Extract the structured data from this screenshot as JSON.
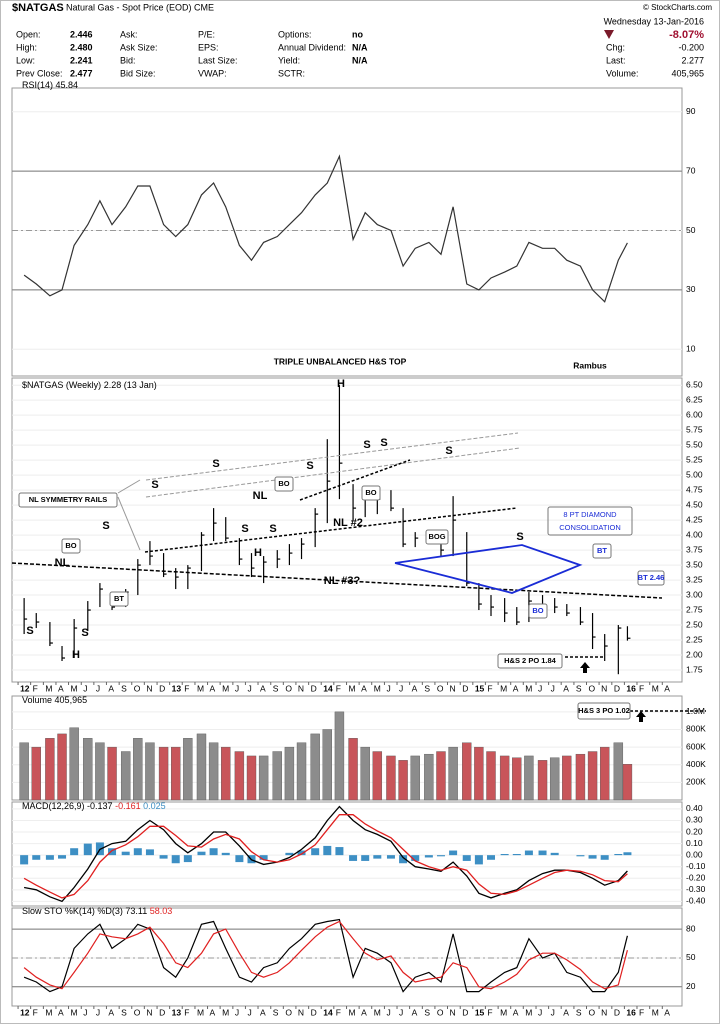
{
  "header": {
    "symbol": "$NATGAS",
    "name": "Natural Gas - Spot Price (EOD) CME",
    "credit": "© StockCharts.com",
    "date": "Wednesday 13-Jan-2016",
    "change_pct": "-8.07%",
    "columns": [
      [
        [
          "Open:",
          "2.446"
        ],
        [
          "High:",
          "2.480"
        ],
        [
          "Low:",
          "2.241"
        ],
        [
          "Prev Close:",
          "2.477"
        ]
      ],
      [
        [
          "Ask:"
        ],
        [
          "Ask Size:"
        ],
        [
          "Bid:"
        ],
        [
          "Bid Size:"
        ]
      ],
      [
        [
          "P/E:"
        ],
        [
          "EPS:"
        ],
        [
          "Last Size:"
        ],
        [
          "VWAP:"
        ]
      ],
      [
        [
          "Options:",
          "no"
        ],
        [
          "Annual Dividend:",
          "N/A"
        ],
        [
          "Yield:",
          "N/A"
        ],
        [
          "SCTR:"
        ]
      ]
    ],
    "quote": [
      [
        "Chg:",
        "-0.200"
      ],
      [
        "Last:",
        "2.277"
      ],
      [
        "Volume:",
        "405,965"
      ]
    ]
  },
  "chart_data": [
    {
      "type": "line",
      "title": "RSI(14)",
      "last": 45.84,
      "ylim": [
        1,
        98
      ],
      "yticks": [
        10,
        30,
        50,
        70,
        90
      ],
      "levels": [
        30,
        70
      ],
      "midline": 50,
      "annotations": [
        "TRIPLE UNBALANCED  H&S TOP",
        "Rambus"
      ],
      "series": [
        {
          "name": "RSI(14)",
          "color": "#333333",
          "values": [
            35,
            32,
            28,
            30,
            45,
            52,
            60,
            52,
            58,
            65,
            65,
            52,
            48,
            52,
            62,
            66,
            58,
            45,
            40,
            46,
            48,
            52,
            56,
            62,
            66,
            75,
            47,
            56,
            52,
            50,
            38,
            44,
            46,
            42,
            58,
            32,
            30,
            34,
            36,
            38,
            46,
            44,
            44,
            40,
            38,
            30,
            26,
            40,
            45.84
          ]
        }
      ]
    },
    {
      "type": "ohlc",
      "title": "$NATGAS (Weekly)",
      "last": 2.28,
      "date": "(13 Jan)",
      "color": "#000000",
      "xlim": [
        2011.96,
        2016.38
      ],
      "x": [
        2012.04,
        2012.12,
        2012.21,
        2012.29,
        2012.37,
        2012.46,
        2012.54,
        2012.62,
        2012.71,
        2012.79,
        2012.87,
        2012.96,
        2013.04,
        2013.12,
        2013.21,
        2013.29,
        2013.37,
        2013.46,
        2013.54,
        2013.62,
        2013.71,
        2013.79,
        2013.87,
        2013.96,
        2014.04,
        2014.12,
        2014.21,
        2014.29,
        2014.37,
        2014.46,
        2014.54,
        2014.62,
        2014.71,
        2014.79,
        2014.87,
        2014.96,
        2015.04,
        2015.12,
        2015.21,
        2015.29,
        2015.37,
        2015.46,
        2015.54,
        2015.62,
        2015.71,
        2015.79,
        2015.87,
        2015.96,
        2016.02
      ],
      "xticks": [
        {
          "value": 2012,
          "label": "12"
        },
        {
          "value": 2012.083,
          "label": "F"
        },
        {
          "value": 2012.167,
          "label": "M"
        },
        {
          "value": 2012.25,
          "label": "A"
        },
        {
          "value": 2012.333,
          "label": "M"
        },
        {
          "value": 2012.417,
          "label": "J"
        },
        {
          "value": 2012.5,
          "label": "J"
        },
        {
          "value": 2012.583,
          "label": "A"
        },
        {
          "value": 2012.667,
          "label": "S"
        },
        {
          "value": 2012.75,
          "label": "O"
        },
        {
          "value": 2012.833,
          "label": "N"
        },
        {
          "value": 2012.917,
          "label": "D"
        },
        {
          "value": 2013,
          "label": "13"
        },
        {
          "value": 2013.083,
          "label": "F"
        },
        {
          "value": 2013.167,
          "label": "M"
        },
        {
          "value": 2013.25,
          "label": "A"
        },
        {
          "value": 2013.333,
          "label": "M"
        },
        {
          "value": 2013.417,
          "label": "J"
        },
        {
          "value": 2013.5,
          "label": "J"
        },
        {
          "value": 2013.583,
          "label": "A"
        },
        {
          "value": 2013.667,
          "label": "S"
        },
        {
          "value": 2013.75,
          "label": "O"
        },
        {
          "value": 2013.833,
          "label": "N"
        },
        {
          "value": 2013.917,
          "label": "D"
        },
        {
          "value": 2014,
          "label": "14"
        },
        {
          "value": 2014.083,
          "label": "F"
        },
        {
          "value": 2014.167,
          "label": "M"
        },
        {
          "value": 2014.25,
          "label": "A"
        },
        {
          "value": 2014.333,
          "label": "M"
        },
        {
          "value": 2014.417,
          "label": "J"
        },
        {
          "value": 2014.5,
          "label": "J"
        },
        {
          "value": 2014.583,
          "label": "A"
        },
        {
          "value": 2014.667,
          "label": "S"
        },
        {
          "value": 2014.75,
          "label": "O"
        },
        {
          "value": 2014.833,
          "label": "N"
        },
        {
          "value": 2014.917,
          "label": "D"
        },
        {
          "value": 2015,
          "label": "15"
        },
        {
          "value": 2015.083,
          "label": "F"
        },
        {
          "value": 2015.167,
          "label": "M"
        },
        {
          "value": 2015.25,
          "label": "A"
        },
        {
          "value": 2015.333,
          "label": "M"
        },
        {
          "value": 2015.417,
          "label": "J"
        },
        {
          "value": 2015.5,
          "label": "J"
        },
        {
          "value": 2015.583,
          "label": "A"
        },
        {
          "value": 2015.667,
          "label": "S"
        },
        {
          "value": 2015.75,
          "label": "O"
        },
        {
          "value": 2015.833,
          "label": "N"
        },
        {
          "value": 2015.917,
          "label": "D"
        },
        {
          "value": 2016,
          "label": "16"
        },
        {
          "value": 2016.083,
          "label": "F"
        },
        {
          "value": 2016.167,
          "label": "M"
        },
        {
          "value": 2016.25,
          "label": "A"
        }
      ],
      "ylim": [
        1.55,
        6.62
      ],
      "yticks": [
        1.75,
        {
          "value": 2,
          "label": "2.00"
        },
        2.25,
        {
          "value": 2.5,
          "label": "2.50"
        },
        2.75,
        {
          "value": 3,
          "label": "3.00"
        },
        3.25,
        {
          "value": 3.5,
          "label": "3.50"
        },
        3.75,
        {
          "value": 4,
          "label": "4.00"
        },
        4.25,
        {
          "value": 4.5,
          "label": "4.50"
        },
        4.75,
        {
          "value": 5,
          "label": "5.00"
        },
        5.25,
        {
          "value": 5.5,
          "label": "5.50"
        },
        5.75,
        {
          "value": 6,
          "label": "6.00"
        },
        6.25,
        {
          "value": 6.5,
          "label": "6.50"
        }
      ],
      "high": [
        2.95,
        2.7,
        2.55,
        2.15,
        2.6,
        2.9,
        3.2,
        3.05,
        3.1,
        3.6,
        3.9,
        3.7,
        3.45,
        3.5,
        4.05,
        4.45,
        4.3,
        3.95,
        3.7,
        3.65,
        3.75,
        3.85,
        3.95,
        4.45,
        5.6,
        6.5,
        4.85,
        4.8,
        4.8,
        4.75,
        4.45,
        4.05,
        4.05,
        4.05,
        4.65,
        4.05,
        3.2,
        3.0,
        2.95,
        2.8,
        3.05,
        3.0,
        2.95,
        2.85,
        2.8,
        2.7,
        2.35,
        2.5,
        2.48
      ],
      "low": [
        2.35,
        2.45,
        2.15,
        1.9,
        1.95,
        2.4,
        2.8,
        2.75,
        2.8,
        3.0,
        3.5,
        3.3,
        3.1,
        3.1,
        3.4,
        3.9,
        3.9,
        3.5,
        3.3,
        3.2,
        3.45,
        3.5,
        3.6,
        3.8,
        4.2,
        4.6,
        4.25,
        4.3,
        4.35,
        4.4,
        3.8,
        3.8,
        3.85,
        3.65,
        3.65,
        3.15,
        2.75,
        2.65,
        2.55,
        2.5,
        2.55,
        2.65,
        2.7,
        2.65,
        2.5,
        2.1,
        1.9,
        1.68,
        2.24
      ],
      "close": [
        2.6,
        2.55,
        2.2,
        1.95,
        2.45,
        2.75,
        3.1,
        2.8,
        3.05,
        3.5,
        3.65,
        3.35,
        3.3,
        3.45,
        4.0,
        4.2,
        3.95,
        3.6,
        3.45,
        3.55,
        3.6,
        3.7,
        3.85,
        4.35,
        4.9,
        5.2,
        4.45,
        4.7,
        4.6,
        4.45,
        3.85,
        3.95,
        3.95,
        3.75,
        4.25,
        3.2,
        2.85,
        2.8,
        2.7,
        2.55,
        2.9,
        2.8,
        2.8,
        2.7,
        2.55,
        2.3,
        2.15,
        2.45,
        2.28
      ],
      "annotations": [
        "H",
        "S",
        "S",
        "S",
        "S",
        "S",
        "S",
        "S",
        "S",
        "S",
        "S",
        "H",
        "H",
        "S",
        "S",
        "NL SYMMETRY RAILS",
        "BO",
        "NL",
        "BT",
        "BO",
        "NL",
        "BO",
        "NL #2",
        "NL #3?",
        "BOG",
        "8 PT DIAMOND",
        "CONSOLIDATION",
        "BT",
        "BO",
        "BT 2.46",
        "H&S 2 PO 1.84"
      ]
    },
    {
      "type": "bar",
      "title": "Volume",
      "last": {
        "value": 405965,
        "label": "405,965"
      },
      "up_color": "#8c8c8c",
      "down_color": "#c8555a",
      "ylim": [
        0,
        1180000
      ],
      "yticks": [
        {
          "value": 200000,
          "label": "200K"
        },
        {
          "value": 400000,
          "label": "400K"
        },
        {
          "value": 600000,
          "label": "600K"
        },
        {
          "value": 800000,
          "label": "800K"
        },
        {
          "value": 1000000,
          "label": "1.0M"
        }
      ],
      "annotations": [
        "H&S 3 PO 1.02"
      ],
      "values": [
        650000,
        600000,
        700000,
        750000,
        820000,
        700000,
        650000,
        600000,
        550000,
        700000,
        650000,
        600000,
        600000,
        700000,
        750000,
        650000,
        600000,
        550000,
        500000,
        500000,
        550000,
        600000,
        650000,
        750000,
        800000,
        1000000,
        700000,
        600000,
        550000,
        500000,
        450000,
        500000,
        520000,
        550000,
        600000,
        650000,
        600000,
        550000,
        500000,
        480000,
        500000,
        450000,
        480000,
        500000,
        520000,
        550000,
        600000,
        650000,
        405965
      ]
    },
    {
      "type": "macd",
      "title": "MACD(12,26,9)",
      "ylim": [
        -0.44,
        0.46
      ],
      "yticks": [
        {
          "value": -0.4,
          "label": "-0.40"
        },
        {
          "value": -0.3,
          "label": "-0.30"
        },
        {
          "value": -0.2,
          "label": "-0.20"
        },
        {
          "value": -0.1,
          "label": "-0.10"
        },
        {
          "value": 0,
          "label": "0.00"
        },
        {
          "value": 0.1,
          "label": "0.10"
        },
        {
          "value": 0.2,
          "label": "0.20"
        },
        {
          "value": 0.3,
          "label": "0.30"
        },
        {
          "value": 0.4,
          "label": "0.40"
        }
      ],
      "series": [
        {
          "name": "MACD",
          "last": -0.137,
          "color": "#000000",
          "values": [
            -0.28,
            -0.3,
            -0.36,
            -0.4,
            -0.28,
            -0.12,
            0.05,
            0.1,
            0.12,
            0.22,
            0.3,
            0.22,
            0.1,
            0.02,
            0.1,
            0.2,
            0.2,
            0.08,
            -0.04,
            -0.08,
            -0.06,
            -0.02,
            0.05,
            0.15,
            0.3,
            0.42,
            0.3,
            0.22,
            0.18,
            0.12,
            -0.02,
            -0.1,
            -0.12,
            -0.14,
            -0.06,
            -0.18,
            -0.33,
            -0.37,
            -0.33,
            -0.3,
            -0.22,
            -0.16,
            -0.13,
            -0.13,
            -0.15,
            -0.2,
            -0.26,
            -0.22,
            -0.137
          ]
        },
        {
          "name": "Signal",
          "last": -0.161,
          "color": "#e02020",
          "values": [
            -0.2,
            -0.26,
            -0.32,
            -0.37,
            -0.34,
            -0.22,
            -0.06,
            0.04,
            0.09,
            0.16,
            0.25,
            0.25,
            0.17,
            0.08,
            0.07,
            0.14,
            0.18,
            0.14,
            0.03,
            -0.04,
            -0.06,
            -0.04,
            0.01,
            0.09,
            0.22,
            0.35,
            0.35,
            0.27,
            0.21,
            0.15,
            0.05,
            -0.05,
            -0.1,
            -0.13,
            -0.1,
            -0.13,
            -0.25,
            -0.33,
            -0.34,
            -0.31,
            -0.26,
            -0.2,
            -0.15,
            -0.13,
            -0.14,
            -0.17,
            -0.22,
            -0.23,
            -0.161
          ]
        },
        {
          "name": "Histogram",
          "last": 0.025,
          "color": "#3d8fc4",
          "values": [
            -0.08,
            -0.04,
            -0.04,
            -0.03,
            0.06,
            0.1,
            0.11,
            0.06,
            0.03,
            0.06,
            0.05,
            -0.03,
            -0.07,
            -0.06,
            0.03,
            0.06,
            0.02,
            -0.06,
            -0.07,
            -0.04,
            0,
            0.02,
            0.04,
            0.06,
            0.08,
            0.07,
            -0.05,
            -0.05,
            -0.03,
            -0.03,
            -0.07,
            -0.05,
            -0.02,
            -0.01,
            0.04,
            -0.05,
            -0.08,
            -0.04,
            0.01,
            0.01,
            0.04,
            0.04,
            0.02,
            0,
            -0.01,
            -0.03,
            -0.04,
            0.01,
            0.025
          ]
        }
      ]
    },
    {
      "type": "line",
      "title": "Slow STO %K(14) %D(3)",
      "ylim": [
        0,
        102
      ],
      "yticks": [
        20,
        50,
        80
      ],
      "levels": [
        20,
        80
      ],
      "midline": 50,
      "series": [
        {
          "name": "%K",
          "last": 73.11,
          "color": "#000000",
          "values": [
            30,
            25,
            15,
            20,
            60,
            75,
            85,
            60,
            70,
            85,
            80,
            40,
            30,
            50,
            85,
            88,
            60,
            30,
            25,
            40,
            45,
            60,
            70,
            85,
            88,
            90,
            30,
            60,
            55,
            45,
            15,
            30,
            35,
            25,
            75,
            15,
            15,
            25,
            35,
            40,
            70,
            50,
            55,
            35,
            30,
            15,
            15,
            35,
            73.11
          ]
        },
        {
          "name": "%D",
          "last": 58.03,
          "color": "#e02020",
          "values": [
            40,
            30,
            22,
            18,
            35,
            55,
            75,
            72,
            70,
            75,
            82,
            65,
            45,
            40,
            55,
            75,
            80,
            55,
            35,
            30,
            35,
            45,
            58,
            72,
            82,
            88,
            70,
            55,
            48,
            52,
            35,
            25,
            28,
            30,
            45,
            40,
            20,
            18,
            25,
            33,
            48,
            55,
            55,
            48,
            38,
            25,
            18,
            22,
            58.03
          ]
        }
      ]
    }
  ]
}
